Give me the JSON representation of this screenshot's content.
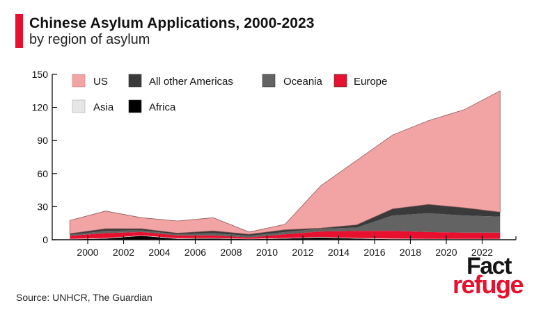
{
  "header": {
    "title": "Chinese Asylum Applications, 2000-2023",
    "subtitle": "by region of asylum"
  },
  "footer": {
    "source": "Source: UNHCR, The Guardian",
    "logo_top": "Fact",
    "logo_bottom": "refuge"
  },
  "colors": {
    "accent": "#e8102f",
    "US": "#f2a3a3",
    "All other Americas": "#3a3a3a",
    "Oceania": "#636363",
    "Europe": "#e8102f",
    "Asia": "#e6e6e6",
    "Africa": "#000000"
  },
  "chart_data": {
    "type": "area",
    "stacked": true,
    "title": "Chinese Asylum Applications, 2000-2023",
    "subtitle": "by region of asylum",
    "xlabel": "",
    "ylabel": "",
    "x": [
      1999,
      2001,
      2003,
      2005,
      2007,
      2009,
      2011,
      2013,
      2015,
      2017,
      2019,
      2021,
      2023
    ],
    "xlim": [
      1998,
      2024
    ],
    "ylim": [
      0,
      150
    ],
    "x_ticks": [
      2000,
      2002,
      2004,
      2006,
      2008,
      2010,
      2012,
      2014,
      2016,
      2018,
      2020,
      2022
    ],
    "y_ticks": [
      0,
      30,
      60,
      90,
      120,
      150
    ],
    "grid": false,
    "legend_position": "top-left",
    "legend": [
      "US",
      "All other Americas",
      "Oceania",
      "Europe",
      "Asia",
      "Africa"
    ],
    "series": [
      {
        "name": "Africa",
        "values": [
          0.3,
          1,
          3.5,
          0.8,
          1,
          0.5,
          1,
          2,
          1,
          0.5,
          0.3,
          0.3,
          0.3
        ]
      },
      {
        "name": "Asia",
        "values": [
          0.5,
          0.5,
          0.5,
          0.5,
          0.5,
          0.3,
          0.5,
          0.5,
          0.5,
          0.5,
          0.5,
          0.5,
          0.5
        ]
      },
      {
        "name": "Europe",
        "values": [
          2.7,
          4.5,
          3,
          2.7,
          2.5,
          1.2,
          3.5,
          5,
          6.5,
          7,
          6.2,
          5.7,
          5.7
        ]
      },
      {
        "name": "Oceania",
        "values": [
          1,
          2,
          1.5,
          1,
          2,
          1.5,
          2,
          2.5,
          3,
          14,
          17,
          15.5,
          14.5
        ]
      },
      {
        "name": "All other Americas",
        "values": [
          1,
          2,
          1.5,
          1,
          2,
          1.5,
          2,
          0.5,
          2.5,
          6,
          8,
          7,
          4
        ]
      },
      {
        "name": "US",
        "values": [
          12,
          16,
          10,
          11,
          12,
          2,
          5,
          38.5,
          58.5,
          67,
          76,
          89,
          110
        ]
      }
    ]
  }
}
